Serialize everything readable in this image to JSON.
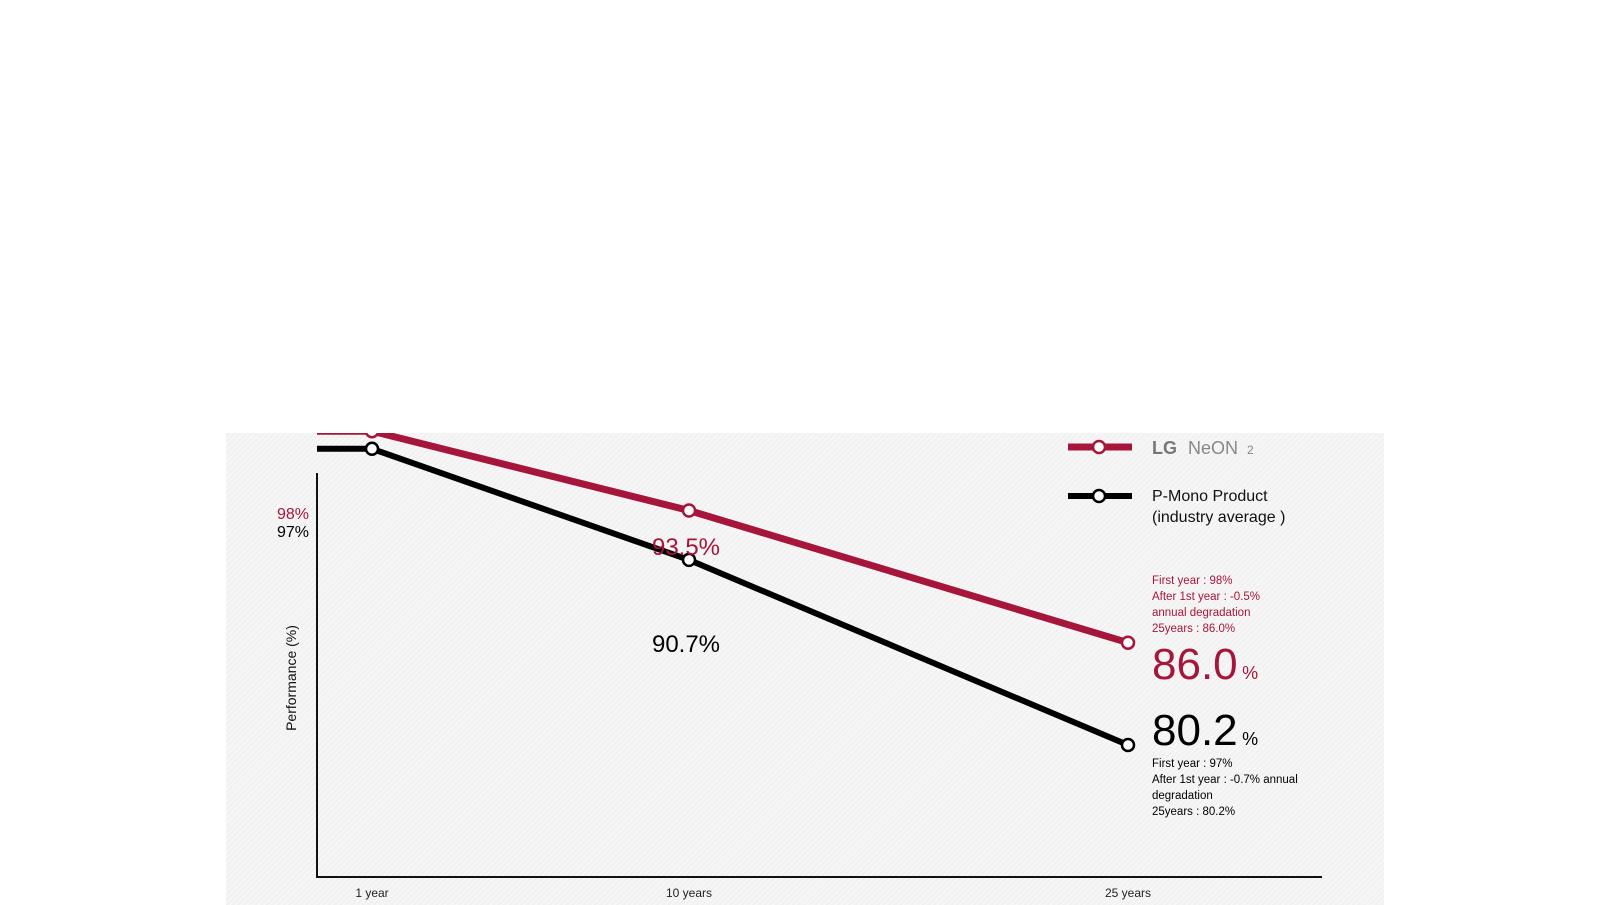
{
  "chart_data": {
    "type": "line",
    "categories": [
      "1 year",
      "10 years",
      "25 years"
    ],
    "x": [
      1,
      10,
      25
    ],
    "ylabel": "Performance (%)",
    "ylim": [
      75,
      100
    ],
    "grid": false,
    "legend_position": "top-right",
    "series": [
      {
        "key": "lg",
        "name": "LG NeON 2",
        "color": "#a6163a",
        "values": [
          98,
          93.5,
          86.0
        ],
        "start_label": "98%",
        "mid_label": "93.5%",
        "end_value": "86.0",
        "end_unit": "%",
        "notes": [
          "First year : 98%",
          "After 1st  year : -0.5%",
          "annual degradation",
          "25years : 86.0%"
        ]
      },
      {
        "key": "pmono",
        "name": "P-Mono Product",
        "name_line2": "(industry average )",
        "color": "#000000",
        "values": [
          97,
          90.7,
          80.2
        ],
        "start_label": "97%",
        "mid_label": "90.7%",
        "end_value": "80.2",
        "end_unit": "%",
        "notes": [
          "First year : 97%",
          "After 1st  year : -0.7% annual",
          "degradation",
          "25years : 80.2%"
        ]
      }
    ],
    "logo": {
      "brand": "LG",
      "product": "NeON",
      "superscript": "2"
    }
  }
}
